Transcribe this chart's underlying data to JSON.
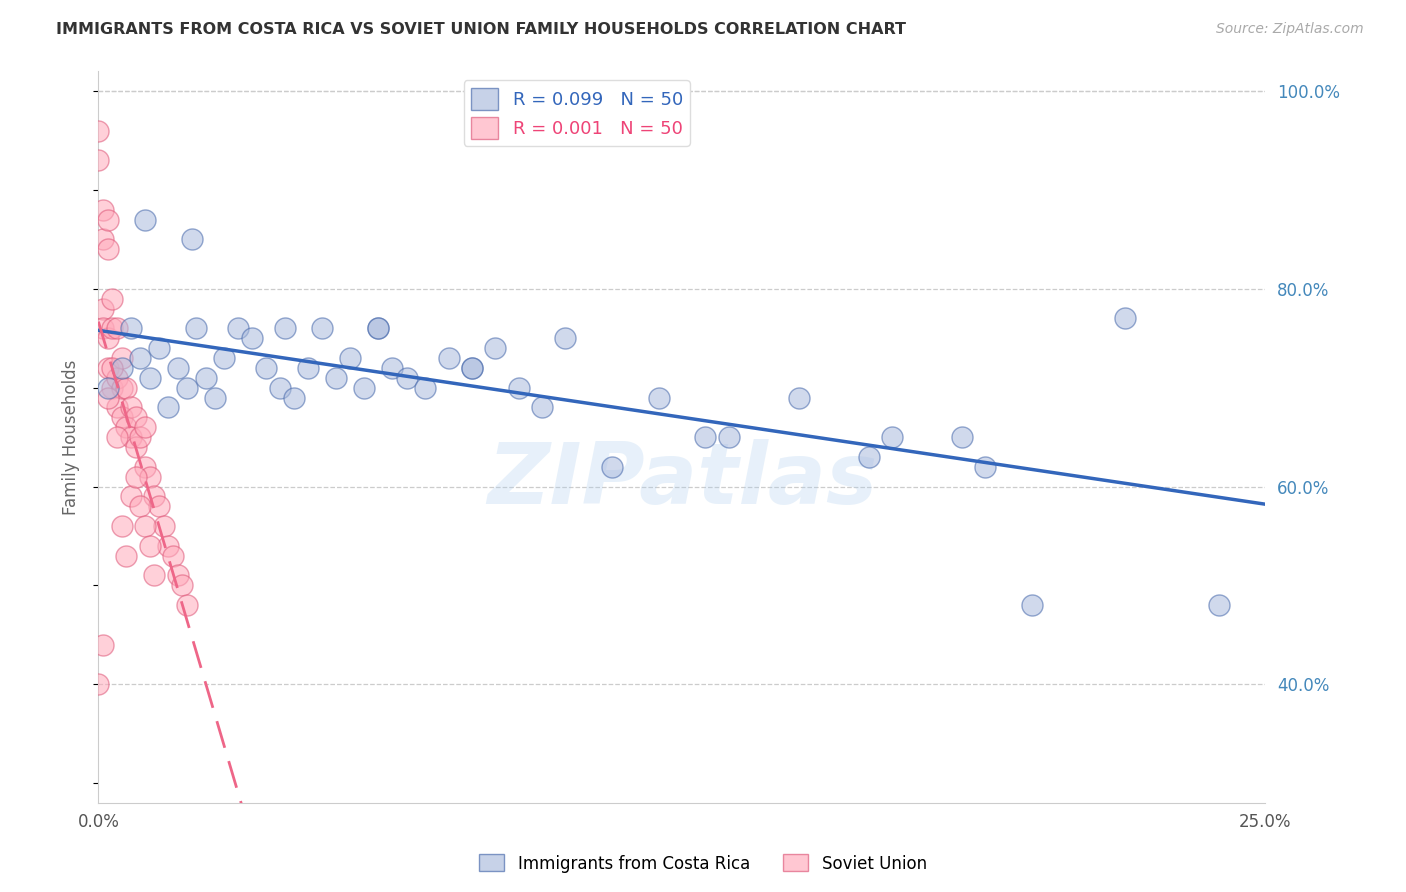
{
  "title": "IMMIGRANTS FROM COSTA RICA VS SOVIET UNION FAMILY HOUSEHOLDS CORRELATION CHART",
  "source": "Source: ZipAtlas.com",
  "ylabel": "Family Households",
  "x_min": 0.0,
  "x_max": 0.25,
  "y_min": 0.28,
  "y_max": 1.02,
  "x_ticks": [
    0.0,
    0.05,
    0.1,
    0.15,
    0.2,
    0.25
  ],
  "x_tick_labels": [
    "0.0%",
    "",
    "",
    "",
    "",
    "25.0%"
  ],
  "y_ticks_right": [
    0.4,
    0.6,
    0.8,
    1.0
  ],
  "y_tick_labels_right": [
    "40.0%",
    "60.0%",
    "80.0%",
    "100.0%"
  ],
  "legend_label_blue": "Immigrants from Costa Rica",
  "legend_label_pink": "Soviet Union",
  "blue_color": "#aabbdd",
  "pink_color": "#ffaabb",
  "trendline_blue_color": "#3366bb",
  "trendline_pink_color": "#ee6688",
  "grid_color": "#cccccc",
  "watermark_text": "ZIPatlas",
  "costa_rica_x": [
    0.002,
    0.005,
    0.007,
    0.009,
    0.011,
    0.013,
    0.015,
    0.017,
    0.019,
    0.021,
    0.023,
    0.025,
    0.027,
    0.03,
    0.033,
    0.036,
    0.039,
    0.042,
    0.045,
    0.048,
    0.051,
    0.054,
    0.057,
    0.06,
    0.063,
    0.066,
    0.07,
    0.075,
    0.08,
    0.085,
    0.09,
    0.01,
    0.02,
    0.04,
    0.06,
    0.08,
    0.1,
    0.12,
    0.135,
    0.15,
    0.165,
    0.185,
    0.2,
    0.22,
    0.24,
    0.095,
    0.11,
    0.13,
    0.17,
    0.19
  ],
  "costa_rica_y": [
    0.7,
    0.72,
    0.76,
    0.73,
    0.71,
    0.74,
    0.68,
    0.72,
    0.7,
    0.76,
    0.71,
    0.69,
    0.73,
    0.76,
    0.75,
    0.72,
    0.7,
    0.69,
    0.72,
    0.76,
    0.71,
    0.73,
    0.7,
    0.76,
    0.72,
    0.71,
    0.7,
    0.73,
    0.72,
    0.74,
    0.7,
    0.87,
    0.85,
    0.76,
    0.76,
    0.72,
    0.75,
    0.69,
    0.65,
    0.69,
    0.63,
    0.65,
    0.48,
    0.77,
    0.48,
    0.68,
    0.62,
    0.65,
    0.65,
    0.62
  ],
  "soviet_x": [
    0.0,
    0.0,
    0.001,
    0.001,
    0.001,
    0.001,
    0.002,
    0.002,
    0.002,
    0.002,
    0.003,
    0.003,
    0.003,
    0.004,
    0.004,
    0.004,
    0.005,
    0.005,
    0.005,
    0.006,
    0.006,
    0.007,
    0.007,
    0.008,
    0.008,
    0.009,
    0.01,
    0.01,
    0.011,
    0.012,
    0.013,
    0.014,
    0.015,
    0.016,
    0.017,
    0.018,
    0.019,
    0.002,
    0.003,
    0.004,
    0.0,
    0.001,
    0.005,
    0.006,
    0.007,
    0.008,
    0.009,
    0.01,
    0.011,
    0.012
  ],
  "soviet_y": [
    0.96,
    0.93,
    0.88,
    0.85,
    0.78,
    0.76,
    0.87,
    0.84,
    0.75,
    0.72,
    0.79,
    0.76,
    0.7,
    0.76,
    0.71,
    0.68,
    0.73,
    0.7,
    0.67,
    0.7,
    0.66,
    0.68,
    0.65,
    0.67,
    0.64,
    0.65,
    0.66,
    0.62,
    0.61,
    0.59,
    0.58,
    0.56,
    0.54,
    0.53,
    0.51,
    0.5,
    0.48,
    0.69,
    0.72,
    0.65,
    0.4,
    0.44,
    0.56,
    0.53,
    0.59,
    0.61,
    0.58,
    0.56,
    0.54,
    0.51
  ]
}
